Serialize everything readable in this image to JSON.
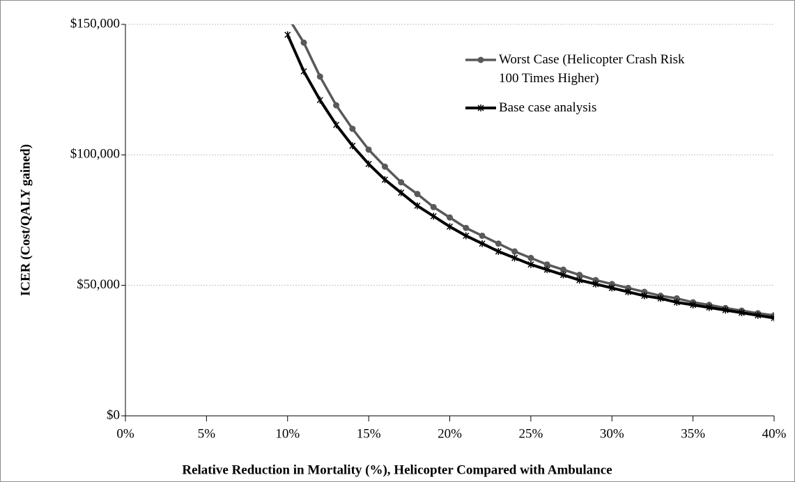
{
  "chart_data": {
    "type": "line",
    "x_label": "Relative Reduction in Mortality (%), Helicopter Compared with Ambulance",
    "y_label": "ICER (Cost/QALY gained)",
    "x": [
      10,
      11,
      12,
      13,
      14,
      15,
      16,
      17,
      18,
      19,
      20,
      21,
      22,
      23,
      24,
      25,
      26,
      27,
      28,
      29,
      30,
      31,
      32,
      33,
      34,
      35,
      36,
      37,
      38,
      39,
      40
    ],
    "series": [
      {
        "name": "Worst Case (Helicopter Crash Risk 100 Times Higher)",
        "color": "#595959",
        "marker": "circle",
        "values": [
          153000,
          143000,
          130000,
          119000,
          110000,
          102000,
          95500,
          89500,
          85000,
          80000,
          76000,
          72000,
          69000,
          66000,
          63000,
          60500,
          58000,
          56000,
          54000,
          52000,
          50500,
          49000,
          47500,
          46000,
          45000,
          43500,
          42500,
          41300,
          40300,
          39300,
          38500
        ]
      },
      {
        "name": "Base case analysis",
        "color": "#000000",
        "marker": "star",
        "values": [
          146000,
          132000,
          121000,
          111500,
          103500,
          96500,
          90500,
          85500,
          80500,
          76500,
          72500,
          69000,
          66000,
          63000,
          60500,
          58000,
          56000,
          54000,
          52000,
          50500,
          49000,
          47500,
          46000,
          45000,
          43500,
          42500,
          41500,
          40500,
          39500,
          38500,
          37500
        ]
      }
    ],
    "xlim": [
      0,
      40
    ],
    "xticks": [
      {
        "value": 0,
        "label": "0%"
      },
      {
        "value": 5,
        "label": "5%"
      },
      {
        "value": 10,
        "label": "10%"
      },
      {
        "value": 15,
        "label": "15%"
      },
      {
        "value": 20,
        "label": "20%"
      },
      {
        "value": 25,
        "label": "25%"
      },
      {
        "value": 30,
        "label": "30%"
      },
      {
        "value": 35,
        "label": "35%"
      },
      {
        "value": 40,
        "label": "40%"
      }
    ],
    "ylim": [
      0,
      150000
    ],
    "yticks": [
      {
        "value": 0,
        "label": "$0"
      },
      {
        "value": 50000,
        "label": "$50,000"
      },
      {
        "value": 100000,
        "label": "$100,000"
      },
      {
        "value": 150000,
        "label": "$150,000"
      }
    ],
    "grid": true,
    "legend": "top-right"
  }
}
